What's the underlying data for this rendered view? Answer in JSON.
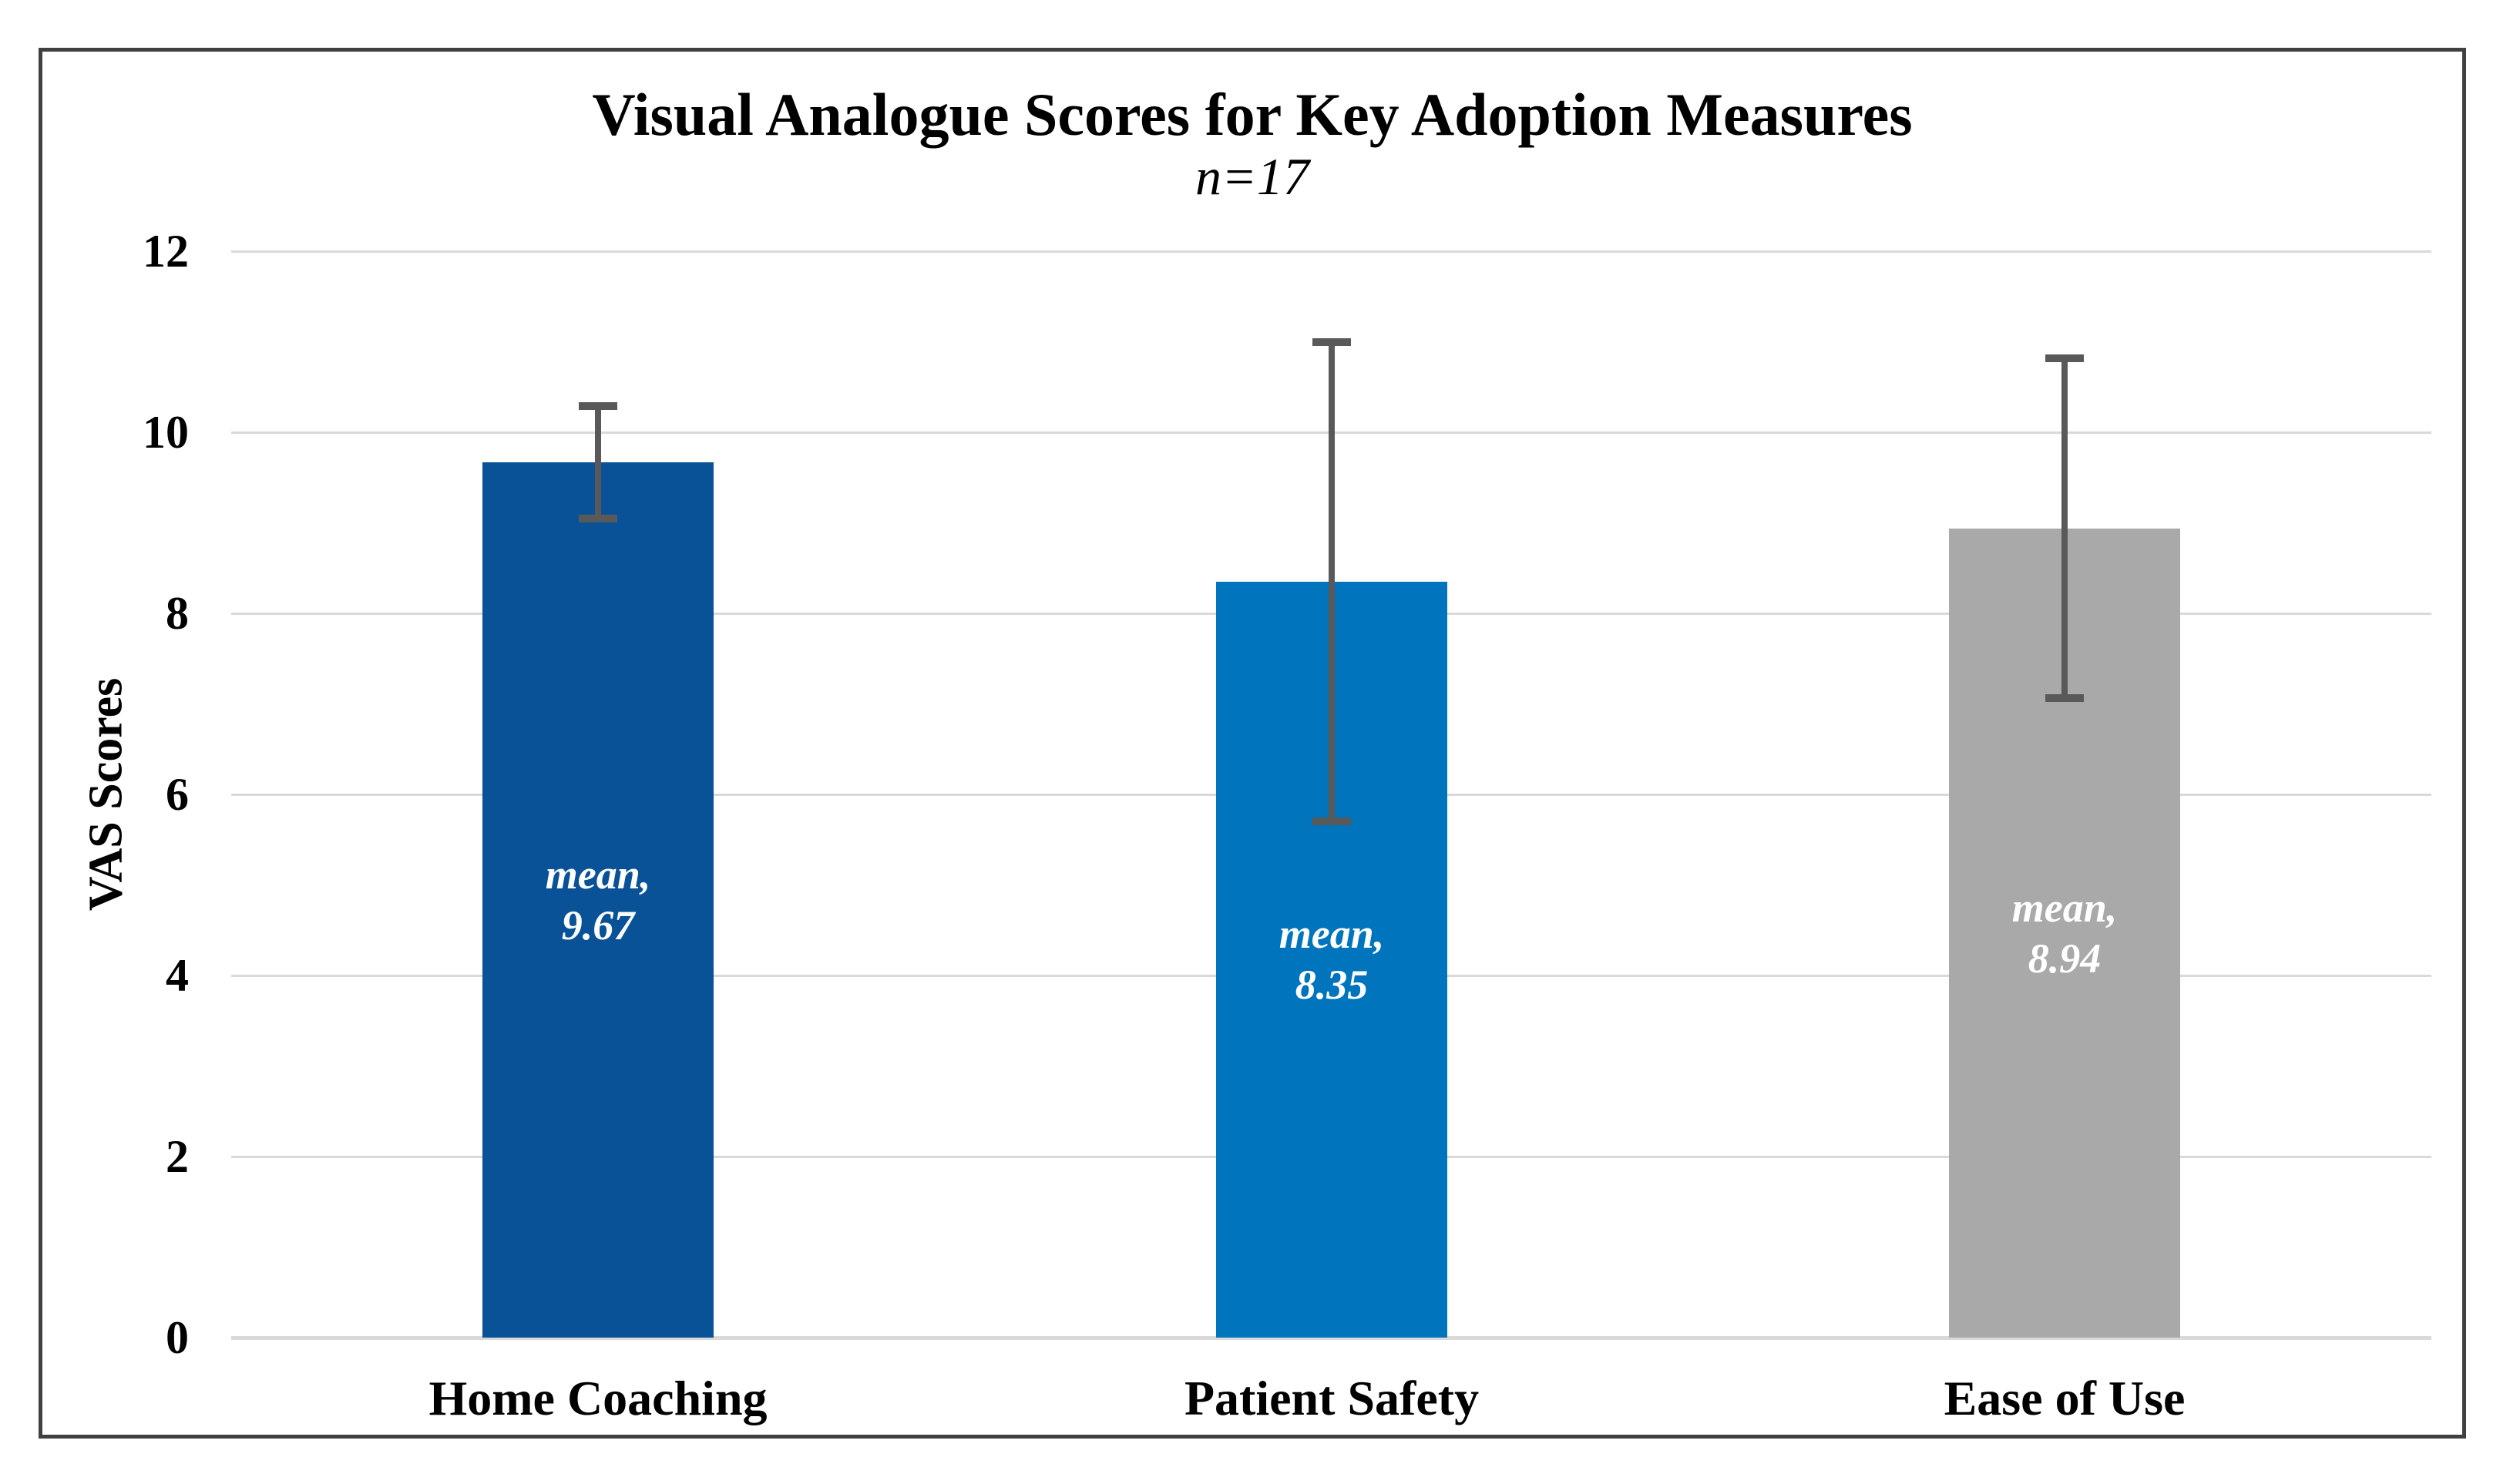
{
  "chart_data": {
    "type": "bar",
    "title": "Visual Analogue Scores for Key Adoption Measures",
    "subtitle": "n=17",
    "ylabel": "VAS Scores",
    "xlabel": "",
    "categories": [
      "Home Coaching",
      "Patient Safety",
      "Ease of Use"
    ],
    "series": [
      {
        "name": "mean",
        "values": [
          9.67,
          8.35,
          8.94
        ],
        "error_symmetric": [
          0.62,
          2.65,
          1.88
        ],
        "error_upper_ends": [
          10.29,
          11.0,
          10.82
        ],
        "error_lower_ends": [
          9.05,
          5.7,
          7.06
        ]
      }
    ],
    "data_labels": [
      [
        "mean,",
        "9.67"
      ],
      [
        "mean,",
        "8.35"
      ],
      [
        "mean,",
        "8.94"
      ]
    ],
    "bar_colors": [
      "#0A5298",
      "#0074BC",
      "#A9A9A9"
    ],
    "ylim": [
      0,
      12
    ],
    "yticks": [
      0,
      2,
      4,
      6,
      8,
      10,
      12
    ],
    "grid": true,
    "legend_position": "none",
    "style": {
      "gridline_color": "#D9D9D9",
      "error_bar_color": "#595959",
      "frame_border_color": "#404040",
      "data_label_color": "#FFFFFF",
      "text_color": "#000000",
      "background": "#FFFFFF"
    }
  }
}
